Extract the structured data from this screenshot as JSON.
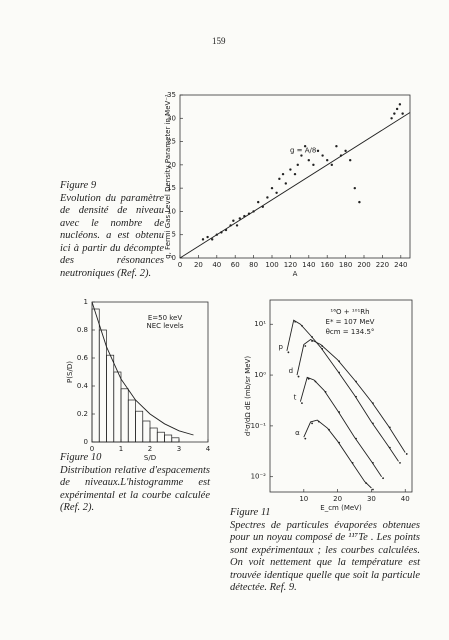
{
  "page_number": "159",
  "figures": [
    {
      "label": "Figure 9",
      "caption": "Evolution du paramètre de densité de niveau avec le nombre de nucléons. a est obtenu ici à partir du décompte des résonances neutroniques (Ref. 2)."
    },
    {
      "label": "Figure 10",
      "caption": "Distribution relative d'espacements de niveaux.L'histogramme est expérimental et la courbe calculée (Ref. 2)."
    },
    {
      "label": "Figure 11",
      "caption": "Spectres de particules évaporées obtenues pour un noyau composé de ¹¹⁷Te . Les points sont expérimentaux ; les courbes calculées. On voit nettement que la température est trouvée identique quelle que soit la particule détectée. Ref. 9."
    }
  ],
  "chart_data": [
    {
      "type": "scatter",
      "y_label": "g, Fermi Gas Level Density Parameter in MeV⁻¹",
      "x_label": "A",
      "xlim": [
        0,
        250
      ],
      "ylim": [
        0,
        35
      ],
      "xticks": [
        0,
        20,
        40,
        60,
        80,
        100,
        120,
        140,
        160,
        180,
        200,
        220,
        240
      ],
      "yticks": [
        0,
        5,
        10,
        15,
        20,
        25,
        30,
        35
      ],
      "x": [
        25,
        30,
        35,
        40,
        45,
        50,
        55,
        58,
        62,
        65,
        70,
        75,
        80,
        85,
        90,
        95,
        100,
        105,
        108,
        112,
        115,
        120,
        125,
        128,
        132,
        136,
        140,
        145,
        150,
        155,
        160,
        165,
        170,
        175,
        180,
        185,
        190,
        195,
        230,
        233,
        236,
        239,
        242
      ],
      "y": [
        4,
        4.5,
        4,
        5,
        5.5,
        6,
        7,
        8,
        7,
        8.5,
        9,
        9.5,
        10,
        12,
        11,
        13,
        15,
        14,
        17,
        18,
        16,
        19,
        18,
        20,
        22,
        24,
        21,
        20,
        23,
        22,
        21,
        20,
        24,
        22,
        23,
        21,
        15,
        12,
        30,
        31,
        32,
        33,
        31
      ],
      "fit": {
        "label": "g = A/8",
        "x": [
          0,
          250
        ],
        "y": [
          0,
          31.25
        ]
      }
    },
    {
      "type": "histogram",
      "x_label": "S/D",
      "y_label": "P(S/D)",
      "annotations": [
        "E=50 keV",
        "NEC levels"
      ],
      "xlim": [
        0,
        4
      ],
      "ylim": [
        0,
        1.0
      ],
      "xticks": [
        0,
        1,
        2,
        3,
        4
      ],
      "yticks": [
        0,
        0.2,
        0.4,
        0.6,
        0.8,
        1.0
      ],
      "bins": [
        0,
        0.25,
        0.5,
        0.75,
        1,
        1.25,
        1.5,
        1.75,
        2,
        2.25,
        2.5,
        2.75,
        3
      ],
      "counts": [
        0.95,
        0.8,
        0.62,
        0.5,
        0.38,
        0.3,
        0.22,
        0.15,
        0.1,
        0.07,
        0.05,
        0.03
      ],
      "curve": {
        "x": [
          0,
          0.5,
          1,
          1.5,
          2,
          2.5,
          3,
          3.5
        ],
        "y": [
          1,
          0.68,
          0.45,
          0.3,
          0.2,
          0.13,
          0.08,
          0.05
        ]
      }
    },
    {
      "type": "line",
      "x_label": "E_cm (MeV)",
      "y_label": "d²σ/dΩ dE (mb/sr MeV)",
      "log_y": true,
      "annotations": [
        "¹⁶O + ¹⁰¹Rh",
        "E* = 107 MeV",
        "θcm = 134.5°"
      ],
      "xlim": [
        0,
        42
      ],
      "ylim": [
        0.005,
        30
      ],
      "xticks": [
        10,
        20,
        30,
        40
      ],
      "yticks": [
        {
          "value": 10,
          "label": "10¹"
        },
        {
          "value": 1,
          "label": "10⁰"
        },
        {
          "value": 0.1,
          "label": "10⁻¹"
        },
        {
          "value": 0.01,
          "label": "10⁻²"
        }
      ],
      "series": [
        {
          "name": "p",
          "x": [
            5,
            7,
            9,
            12,
            15,
            20,
            25,
            30,
            35,
            38
          ],
          "values": [
            3,
            12,
            10,
            6,
            3.5,
            1.2,
            0.4,
            0.12,
            0.04,
            0.02
          ]
        },
        {
          "name": "d",
          "x": [
            8,
            10,
            12,
            15,
            20,
            25,
            30,
            35,
            40
          ],
          "values": [
            1,
            4,
            5,
            4,
            2,
            0.8,
            0.3,
            0.1,
            0.03
          ]
        },
        {
          "name": "t",
          "x": [
            9,
            11,
            13,
            16,
            20,
            25,
            30,
            33
          ],
          "values": [
            0.3,
            0.9,
            0.8,
            0.5,
            0.2,
            0.06,
            0.02,
            0.01
          ]
        },
        {
          "name": "α",
          "x": [
            10,
            12,
            14,
            17,
            20,
            24,
            28,
            30
          ],
          "values": [
            0.06,
            0.12,
            0.13,
            0.09,
            0.05,
            0.02,
            0.008,
            0.006
          ]
        }
      ]
    }
  ]
}
